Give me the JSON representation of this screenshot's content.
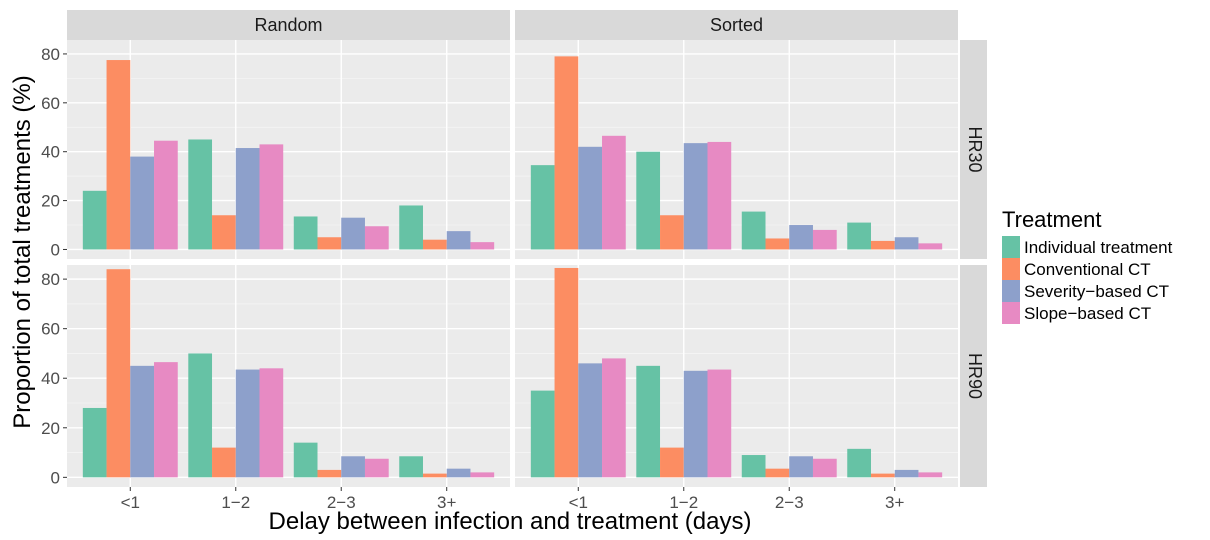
{
  "chart_data": {
    "type": "bar",
    "xlabel": "Delay between infection and treatment (days)",
    "ylabel": "Proportion of total treatments (%)",
    "ylim": [
      0,
      85
    ],
    "yticks": [
      0,
      20,
      40,
      60,
      80
    ],
    "grid": true,
    "legend_position": "right",
    "legend_title": "Treatment",
    "categories": [
      "<1",
      "1−2",
      "2−3",
      "3+"
    ],
    "col_facets": [
      "Random",
      "Sorted"
    ],
    "row_facets": [
      "HR30",
      "HR90"
    ],
    "series": [
      {
        "name": "Individual treatment",
        "color": "#66c2a5"
      },
      {
        "name": "Conventional CT",
        "color": "#fc8d62"
      },
      {
        "name": "Severity−based CT",
        "color": "#8da0cb"
      },
      {
        "name": "Slope−based CT",
        "color": "#e78ac3"
      }
    ],
    "panels": [
      {
        "col": "Random",
        "row": "HR30",
        "values": [
          [
            24,
            45,
            13.5,
            18
          ],
          [
            77.5,
            14,
            5,
            4
          ],
          [
            38,
            41.5,
            13,
            7.5
          ],
          [
            44.5,
            43,
            9.5,
            3
          ]
        ]
      },
      {
        "col": "Sorted",
        "row": "HR30",
        "values": [
          [
            34.5,
            40,
            15.5,
            11
          ],
          [
            79,
            14,
            4.5,
            3.5
          ],
          [
            42,
            43.5,
            10,
            5
          ],
          [
            46.5,
            44,
            8,
            2.5
          ]
        ]
      },
      {
        "col": "Random",
        "row": "HR90",
        "values": [
          [
            28,
            50,
            14,
            8.5
          ],
          [
            84,
            12,
            3,
            1.5
          ],
          [
            45,
            43.5,
            8.5,
            3.5
          ],
          [
            46.5,
            44,
            7.5,
            2
          ]
        ]
      },
      {
        "col": "Sorted",
        "row": "HR90",
        "values": [
          [
            35,
            45,
            9,
            11.5
          ],
          [
            84.5,
            12,
            3.5,
            1.5
          ],
          [
            46,
            43,
            8.5,
            3
          ],
          [
            48,
            43.5,
            7.5,
            2
          ]
        ]
      }
    ]
  }
}
